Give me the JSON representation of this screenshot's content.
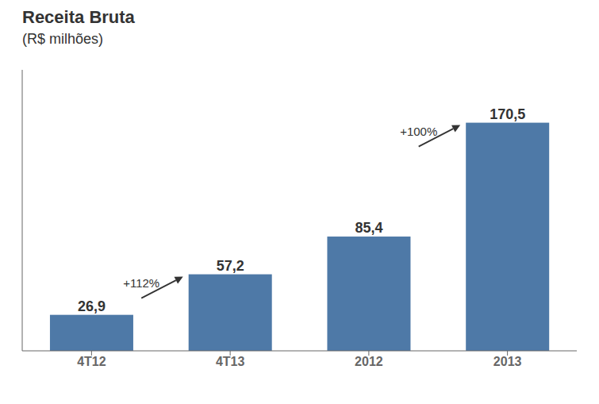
{
  "chart_data": {
    "type": "bar",
    "title": "Receita Bruta",
    "subtitle": "(R$ milhões)",
    "categories": [
      "4T12",
      "4T13",
      "2012",
      "2013"
    ],
    "values": [
      26.9,
      57.2,
      85.4,
      170.5
    ],
    "value_labels": [
      "26,9",
      "57,2",
      "85,4",
      "170,5"
    ],
    "data_labels": true,
    "color": "#4e79a7",
    "ylim": [
      0,
      210
    ],
    "tick_labels": "x",
    "grid": false,
    "annotations": [
      {
        "text": "+112%",
        "from": "4T12",
        "to": "4T13"
      },
      {
        "text": "+100%",
        "from": "2012",
        "to": "2013"
      }
    ]
  }
}
